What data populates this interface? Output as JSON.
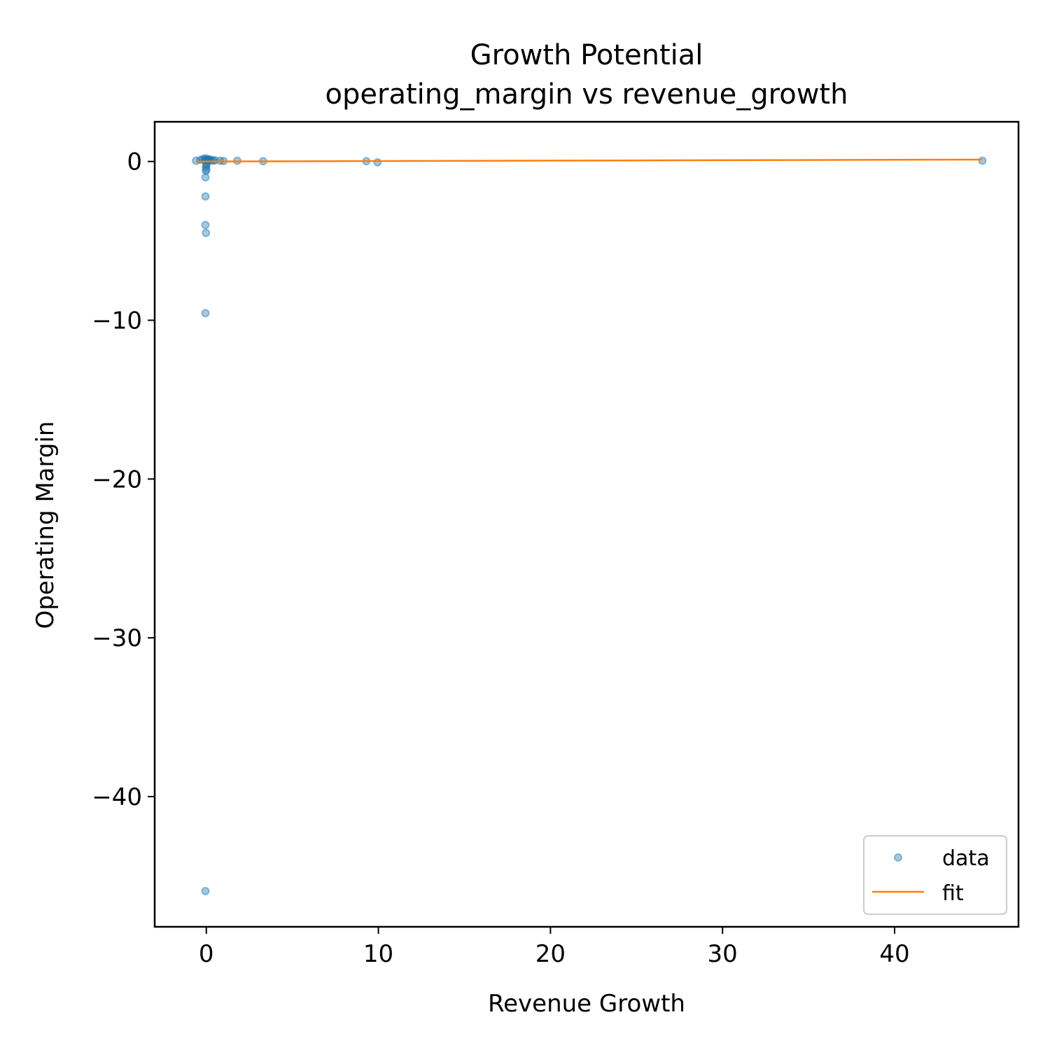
{
  "chart_data": {
    "type": "scatter",
    "title": "Growth Potential",
    "subtitle": "operating_margin vs revenue_growth",
    "xlabel": "Revenue Growth",
    "ylabel": "Operating Margin",
    "xlim": [
      -3,
      47.2
    ],
    "ylim": [
      -48.2,
      2.5
    ],
    "x_ticks": [
      0,
      10,
      20,
      30,
      40
    ],
    "x_tick_labels": [
      "0",
      "10",
      "20",
      "30",
      "40"
    ],
    "y_ticks": [
      0,
      -10,
      -20,
      -30,
      -40
    ],
    "y_tick_labels": [
      "0",
      "−10",
      "−20",
      "−30",
      "−40"
    ],
    "grid": false,
    "legend_placement": "lower-right",
    "colors": {
      "data": "#1f77b4",
      "fit": "#ff7f0e"
    },
    "series": [
      {
        "name": "data",
        "kind": "scatter",
        "points": [
          {
            "x": -0.6,
            "y": 0.05
          },
          {
            "x": -0.35,
            "y": 0.1
          },
          {
            "x": -0.2,
            "y": 0.15
          },
          {
            "x": -0.1,
            "y": 0.12
          },
          {
            "x": -0.05,
            "y": 0.2
          },
          {
            "x": 0.0,
            "y": 0.1
          },
          {
            "x": 0.05,
            "y": 0.05
          },
          {
            "x": 0.1,
            "y": 0.15
          },
          {
            "x": 0.15,
            "y": 0.08
          },
          {
            "x": 0.2,
            "y": 0.12
          },
          {
            "x": 0.3,
            "y": 0.1
          },
          {
            "x": 0.4,
            "y": 0.05
          },
          {
            "x": 0.5,
            "y": 0.08
          },
          {
            "x": 0.8,
            "y": 0.05
          },
          {
            "x": 1.0,
            "y": 0.03
          },
          {
            "x": 1.8,
            "y": 0.05
          },
          {
            "x": 3.3,
            "y": 0.02
          },
          {
            "x": 9.3,
            "y": 0.02
          },
          {
            "x": 9.95,
            "y": -0.05
          },
          {
            "x": 45.1,
            "y": 0.05
          },
          {
            "x": 0.0,
            "y": -0.1
          },
          {
            "x": 0.02,
            "y": -0.2
          },
          {
            "x": -0.03,
            "y": -0.35
          },
          {
            "x": 0.0,
            "y": -0.5
          },
          {
            "x": -0.02,
            "y": -0.6
          },
          {
            "x": -0.05,
            "y": -1.0
          },
          {
            "x": -0.05,
            "y": -2.2
          },
          {
            "x": -0.05,
            "y": -4.0
          },
          {
            "x": -0.02,
            "y": -4.5
          },
          {
            "x": -0.05,
            "y": -9.55
          },
          {
            "x": -0.05,
            "y": -45.95
          }
        ]
      },
      {
        "name": "fit",
        "kind": "line",
        "points": [
          {
            "x": -0.6,
            "y": 0.0
          },
          {
            "x": 45.1,
            "y": 0.12
          }
        ]
      }
    ]
  }
}
